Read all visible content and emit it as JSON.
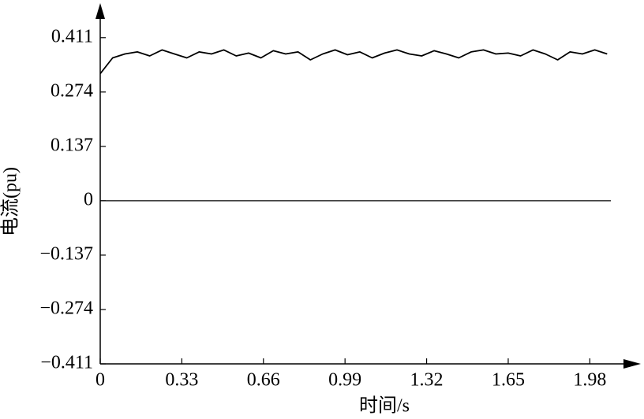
{
  "chart_data": {
    "type": "line",
    "x_label": "时间/s",
    "y_label": "电流(pu)",
    "x": [
      0,
      0.05,
      0.1,
      0.15,
      0.2,
      0.25,
      0.3,
      0.35,
      0.4,
      0.45,
      0.5,
      0.55,
      0.6,
      0.65,
      0.7,
      0.75,
      0.8,
      0.85,
      0.9,
      0.95,
      1.0,
      1.05,
      1.1,
      1.15,
      1.2,
      1.25,
      1.3,
      1.35,
      1.4,
      1.45,
      1.5,
      1.55,
      1.6,
      1.65,
      1.7,
      1.75,
      1.8,
      1.85,
      1.9,
      1.95,
      2.0,
      2.05
    ],
    "series": [
      {
        "color": "#000000",
        "values": [
          0.32,
          0.36,
          0.37,
          0.375,
          0.365,
          0.38,
          0.37,
          0.36,
          0.375,
          0.37,
          0.38,
          0.365,
          0.372,
          0.36,
          0.378,
          0.37,
          0.375,
          0.355,
          0.37,
          0.38,
          0.368,
          0.375,
          0.36,
          0.372,
          0.38,
          0.37,
          0.365,
          0.378,
          0.37,
          0.36,
          0.375,
          0.38,
          0.37,
          0.372,
          0.365,
          0.38,
          0.37,
          0.355,
          0.375,
          0.37,
          0.38,
          0.37
        ]
      }
    ],
    "xlim": [
      0,
      2.18
    ],
    "ylim": [
      -0.411,
      0.486
    ],
    "xticks": [
      0,
      0.33,
      0.66,
      0.99,
      1.32,
      1.65,
      1.98
    ],
    "yticks": [
      {
        "value": -0.411,
        "label": "−0.411"
      },
      {
        "value": -0.274,
        "label": "−0.274"
      },
      {
        "value": -0.137,
        "label": "−0.137"
      },
      0,
      0.137,
      0.274,
      0.411
    ]
  }
}
